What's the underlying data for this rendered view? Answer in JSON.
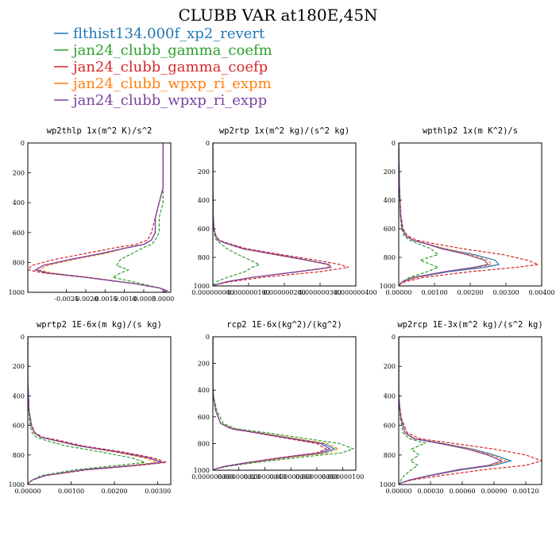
{
  "figure_title": "CLUBB VAR at180E,45N",
  "legend": [
    {
      "label": "flthist134.000f_xp2_revert",
      "color": "#1f77b4"
    },
    {
      "label": "jan24_clubb_gamma_coefm",
      "color": "#2ca02c"
    },
    {
      "label": "jan24_clubb_gamma_coefp",
      "color": "#d62728"
    },
    {
      "label": "jan24_clubb_wpxp_ri_expm",
      "color": "#ff7f0e"
    },
    {
      "label": "jan24_clubb_wpxp_ri_expp",
      "color": "#7b3fa0"
    }
  ],
  "chart_data": [
    {
      "type": "line",
      "title": "wp2thlp 1x(m^2 K)/s^2",
      "xlim": [
        -0.0035,
        0.0002
      ],
      "ylim": [
        1000,
        0
      ],
      "x_ticks": [
        "-0.0025",
        "-0.0020",
        "-0.0015",
        "-0.0010",
        "-0.0005",
        "0.0000"
      ],
      "x_tick_values": [
        -0.0025,
        -0.002,
        -0.0015,
        -0.001,
        -0.0005,
        0.0
      ],
      "y_ticks": [
        "0",
        "200",
        "400",
        "600",
        "800",
        "1000"
      ],
      "y_tick_values": [
        0,
        200,
        400,
        600,
        800,
        1000
      ],
      "y": [
        0,
        300,
        400,
        500,
        600,
        650,
        680,
        700,
        740,
        780,
        820,
        850,
        870,
        900,
        940,
        970,
        990,
        1000
      ],
      "series": [
        {
          "name": "flthist134.000f_xp2_revert",
          "x": [
            0.0,
            0.0,
            -0.0001,
            -0.0002,
            -0.0002,
            -0.0003,
            -0.0005,
            -0.0009,
            -0.0016,
            -0.0024,
            -0.0031,
            -0.0033,
            -0.003,
            -0.002,
            -0.0008,
            -0.0001,
            0.0001,
            0.0
          ]
        },
        {
          "name": "jan24_clubb_gamma_coefm",
          "x": [
            0.0,
            0.0,
            0.0,
            -0.0001,
            -0.0001,
            -0.0002,
            -0.0003,
            -0.0005,
            -0.0008,
            -0.0011,
            -0.0012,
            -0.0009,
            -0.0011,
            -0.0013,
            -0.0006,
            -0.0001,
            0.0001,
            0.0
          ]
        },
        {
          "name": "jan24_clubb_gamma_coefp",
          "x": [
            0.0,
            0.0,
            -0.0001,
            -0.0002,
            -0.0003,
            -0.0004,
            -0.0007,
            -0.0012,
            -0.002,
            -0.0028,
            -0.0034,
            -0.0035,
            -0.0031,
            -0.002,
            -0.0008,
            -0.0001,
            0.0001,
            0.0
          ]
        },
        {
          "name": "jan24_clubb_wpxp_ri_expm",
          "x": [
            0.0,
            0.0,
            -0.0001,
            -0.0002,
            -0.0002,
            -0.0003,
            -0.0005,
            -0.0009,
            -0.0015,
            -0.0023,
            -0.003,
            -0.0032,
            -0.0029,
            -0.0019,
            -0.0008,
            -0.0001,
            0.0001,
            0.0
          ]
        },
        {
          "name": "jan24_clubb_wpxp_ri_expp",
          "x": [
            0.0,
            0.0,
            -0.0001,
            -0.0002,
            -0.0002,
            -0.0003,
            -0.0005,
            -0.0009,
            -0.0016,
            -0.0024,
            -0.0031,
            -0.0033,
            -0.003,
            -0.002,
            -0.0008,
            -0.0001,
            0.0001,
            0.0
          ]
        }
      ]
    },
    {
      "type": "line",
      "title": "wp2rtp 1x(m^2 kg)/(s^2 kg)",
      "xlim": [
        0,
        4e-07
      ],
      "ylim": [
        1000,
        0
      ],
      "x_ticks": [
        "0.000000000",
        "0.000000100",
        "0.000000200",
        "0.000000300",
        "0.000000400"
      ],
      "x_tick_values": [
        0,
        1e-07,
        2e-07,
        3e-07,
        4e-07
      ],
      "y_ticks": [
        "0",
        "200",
        "400",
        "600",
        "800",
        "1000"
      ],
      "y_tick_values": [
        0,
        200,
        400,
        600,
        800,
        1000
      ],
      "y": [
        0,
        300,
        500,
        600,
        650,
        680,
        700,
        740,
        780,
        820,
        850,
        870,
        900,
        940,
        970,
        990,
        1000
      ],
      "series": [
        {
          "name": "flthist134.000f_xp2_revert",
          "x": [
            0,
            0,
            1e-09,
            3e-09,
            8e-09,
            1.5e-08,
            3.5e-08,
            8.5e-08,
            1.75e-07,
            2.65e-07,
            3.25e-07,
            3.3e-07,
            2.4e-07,
            1.1e-07,
            4e-08,
            1e-08,
            0
          ]
        },
        {
          "name": "jan24_clubb_gamma_coefm",
          "x": [
            0,
            0,
            1e-09,
            2e-09,
            5e-09,
            1e-08,
            2e-08,
            4e-08,
            7e-08,
            1.05e-07,
            1.3e-07,
            1.1e-07,
            9e-08,
            4e-08,
            1e-08,
            3e-09,
            0
          ]
        },
        {
          "name": "jan24_clubb_gamma_coefp",
          "x": [
            0,
            0,
            1e-09,
            3e-09,
            9e-09,
            1.8e-08,
            4e-08,
            9.5e-08,
            1.9e-07,
            2.9e-07,
            3.55e-07,
            3.8e-07,
            3e-07,
            1.4e-07,
            5e-08,
            1e-08,
            0
          ]
        },
        {
          "name": "jan24_clubb_wpxp_ri_expm",
          "x": [
            0,
            0,
            1e-09,
            3e-09,
            8e-09,
            1.5e-08,
            3.4e-08,
            8.2e-08,
            1.7e-07,
            2.6e-07,
            3.2e-07,
            3.25e-07,
            2.35e-07,
            1.1e-07,
            4e-08,
            1e-08,
            0
          ]
        },
        {
          "name": "jan24_clubb_wpxp_ri_expp",
          "x": [
            0,
            0,
            1e-09,
            3e-09,
            8e-09,
            1.5e-08,
            3.5e-08,
            8.5e-08,
            1.75e-07,
            2.65e-07,
            3.25e-07,
            3.3e-07,
            2.4e-07,
            1.1e-07,
            4e-08,
            1e-08,
            0
          ]
        }
      ]
    },
    {
      "type": "line",
      "title": "wpthlp2 1x(m K^2)/s",
      "xlim": [
        0,
        0.004
      ],
      "ylim": [
        1000,
        0
      ],
      "x_ticks": [
        "0.00000",
        "0.00100",
        "0.00200",
        "0.00300",
        "0.00400"
      ],
      "x_tick_values": [
        0,
        0.001,
        0.002,
        0.003,
        0.004
      ],
      "y_ticks": [
        "0",
        "200",
        "400",
        "600",
        "800",
        "1000"
      ],
      "y_tick_values": [
        0,
        200,
        400,
        600,
        800,
        1000
      ],
      "y": [
        0,
        300,
        500,
        600,
        650,
        680,
        700,
        740,
        780,
        820,
        850,
        870,
        900,
        940,
        970,
        990,
        1000
      ],
      "series": [
        {
          "name": "flthist134.000f_xp2_revert",
          "x": [
            0,
            2e-05,
            5e-05,
            0.0001,
            0.0002,
            0.0004,
            0.0007,
            0.0013,
            0.0021,
            0.0027,
            0.0028,
            0.0024,
            0.0014,
            0.0005,
            0.0001,
            2e-05,
            0
          ]
        },
        {
          "name": "jan24_clubb_gamma_coefm",
          "x": [
            0,
            2e-05,
            4e-05,
            8e-05,
            0.00015,
            0.0003,
            0.0005,
            0.0009,
            0.0011,
            0.0006,
            0.0009,
            0.0011,
            0.0008,
            0.0003,
            0.0001,
            2e-05,
            0
          ]
        },
        {
          "name": "jan24_clubb_gamma_coefp",
          "x": [
            0,
            2e-05,
            6e-05,
            0.00012,
            0.00025,
            0.0005,
            0.0009,
            0.0018,
            0.0029,
            0.0036,
            0.0039,
            0.0033,
            0.002,
            0.0007,
            0.0002,
            3e-05,
            0
          ]
        },
        {
          "name": "jan24_clubb_wpxp_ri_expm",
          "x": [
            0,
            2e-05,
            5e-05,
            0.0001,
            0.0002,
            0.0004,
            0.0007,
            0.0013,
            0.002,
            0.0025,
            0.0026,
            0.0022,
            0.0013,
            0.0005,
            0.0001,
            2e-05,
            0
          ]
        },
        {
          "name": "jan24_clubb_wpxp_ri_expp",
          "x": [
            0,
            2e-05,
            5e-05,
            0.0001,
            0.0002,
            0.0004,
            0.0007,
            0.0012,
            0.0019,
            0.0024,
            0.0025,
            0.0021,
            0.0013,
            0.0004,
            0.0001,
            2e-05,
            0
          ]
        }
      ]
    },
    {
      "type": "line",
      "title": "wprtp2 1E-6x(m kg)/(s kg)",
      "xlim": [
        0,
        0.0033
      ],
      "ylim": [
        1000,
        0
      ],
      "x_ticks": [
        "0.00000",
        "0.00100",
        "0.00200",
        "0.00300"
      ],
      "x_tick_values": [
        0,
        0.001,
        0.002,
        0.003
      ],
      "y_ticks": [
        "0",
        "200",
        "400",
        "600",
        "800",
        "1000"
      ],
      "y_tick_values": [
        0,
        200,
        400,
        600,
        800,
        1000
      ],
      "y": [
        0,
        300,
        500,
        600,
        650,
        680,
        700,
        740,
        780,
        820,
        850,
        870,
        900,
        940,
        970,
        990,
        1000
      ],
      "series": [
        {
          "name": "flthist134.000f_xp2_revert",
          "x": [
            0,
            0,
            3e-05,
            8e-05,
            0.00015,
            0.0003,
            0.0006,
            0.0012,
            0.0021,
            0.0028,
            0.0031,
            0.0025,
            0.0013,
            0.0004,
            0.0001,
            2e-05,
            0
          ]
        },
        {
          "name": "jan24_clubb_gamma_coefm",
          "x": [
            0,
            0,
            2e-05,
            5e-05,
            0.0001,
            0.0002,
            0.0004,
            0.0009,
            0.0017,
            0.0024,
            0.0027,
            0.0021,
            0.0011,
            0.0003,
            0.0001,
            1e-05,
            0
          ]
        },
        {
          "name": "jan24_clubb_gamma_coefp",
          "x": [
            0,
            0,
            3e-05,
            9e-05,
            0.00017,
            0.00035,
            0.0007,
            0.0013,
            0.0022,
            0.0029,
            0.0032,
            0.0026,
            0.0014,
            0.0004,
            0.0001,
            2e-05,
            0
          ]
        },
        {
          "name": "jan24_clubb_wpxp_ri_expm",
          "x": [
            0,
            0,
            3e-05,
            8e-05,
            0.00015,
            0.0003,
            0.0006,
            0.0012,
            0.002,
            0.0027,
            0.003,
            0.0024,
            0.0013,
            0.0004,
            0.0001,
            2e-05,
            0
          ]
        },
        {
          "name": "jan24_clubb_wpxp_ri_expp",
          "x": [
            0,
            0,
            3e-05,
            8e-05,
            0.00015,
            0.0003,
            0.0006,
            0.0012,
            0.0021,
            0.0028,
            0.0031,
            0.0025,
            0.0013,
            0.0004,
            0.0001,
            2e-05,
            0
          ]
        }
      ]
    },
    {
      "type": "line",
      "title": "rcp2 1E-6x(kg^2)/(kg^2)",
      "xlim": [
        0,
        1.1e-07
      ],
      "ylim": [
        1000,
        0
      ],
      "x_ticks": [
        "0.000000000",
        "0.000000020",
        "0.000000040",
        "0.000000060",
        "0.000000080",
        "0.000000100"
      ],
      "x_tick_values": [
        0,
        2e-08,
        4e-08,
        6e-08,
        8e-08,
        1e-07
      ],
      "y_ticks": [
        "0",
        "200",
        "400",
        "600",
        "800",
        "1000"
      ],
      "y_tick_values": [
        0,
        200,
        400,
        600,
        800,
        1000
      ],
      "y": [
        0,
        380,
        450,
        550,
        650,
        690,
        720,
        760,
        800,
        840,
        870,
        900,
        940,
        970,
        990,
        1000
      ],
      "series": [
        {
          "name": "flthist134.000f_xp2_revert",
          "x": [
            0,
            0,
            5e-10,
            2e-09,
            6e-09,
            1.5e-08,
            3.5e-08,
            6e-08,
            8.5e-08,
            9.35e-08,
            8.5e-08,
            6e-08,
            3e-08,
            1e-08,
            2e-09,
            0
          ]
        },
        {
          "name": "jan24_clubb_gamma_coefm",
          "x": [
            0,
            0,
            6e-10,
            3e-09,
            8e-09,
            1.8e-08,
            4.2e-08,
            7e-08,
            9.75e-08,
            1.08e-07,
            9.9e-08,
            7e-08,
            3.5e-08,
            1.2e-08,
            2e-09,
            0
          ]
        },
        {
          "name": "jan24_clubb_gamma_coefp",
          "x": [
            0,
            0,
            5e-10,
            2e-09,
            6e-09,
            1.4e-08,
            3.3e-08,
            5.6e-08,
            8e-08,
            8.7e-08,
            8e-08,
            5.6e-08,
            2.8e-08,
            9e-09,
            2e-09,
            0
          ]
        },
        {
          "name": "jan24_clubb_wpxp_ri_expm",
          "x": [
            0,
            0,
            5e-10,
            2e-09,
            6e-09,
            1.6e-08,
            3.6e-08,
            6.2e-08,
            8.8e-08,
            9.65e-08,
            8.8e-08,
            6.2e-08,
            3.1e-08,
            1e-08,
            2e-09,
            0
          ]
        },
        {
          "name": "jan24_clubb_wpxp_ri_expp",
          "x": [
            0,
            0,
            5e-10,
            2e-09,
            6e-09,
            1.5e-08,
            3.4e-08,
            5.8e-08,
            8.3e-08,
            9e-08,
            8.2e-08,
            5.8e-08,
            2.9e-08,
            1e-08,
            2e-09,
            0
          ]
        }
      ]
    },
    {
      "type": "line",
      "title": "wp2rcp 1E-3x(m^2 kg)/(s^2 kg)",
      "xlim": [
        0,
        0.00135
      ],
      "ylim": [
        1000,
        0
      ],
      "x_ticks": [
        "0.00000",
        "0.00030",
        "0.00060",
        "0.00090",
        "0.00120"
      ],
      "x_tick_values": [
        0,
        0.0003,
        0.0006,
        0.0009,
        0.0012
      ],
      "y_ticks": [
        "0",
        "200",
        "400",
        "600",
        "800",
        "1000"
      ],
      "y_tick_values": [
        0,
        200,
        400,
        600,
        800,
        1000
      ],
      "y": [
        0,
        380,
        450,
        550,
        650,
        690,
        720,
        760,
        800,
        840,
        870,
        900,
        940,
        970,
        990,
        1000
      ],
      "series": [
        {
          "name": "flthist134.000f_xp2_revert",
          "x": [
            0,
            0,
            5e-06,
            2e-05,
            6e-05,
            0.00015,
            0.0004,
            0.0007,
            0.0009,
            0.00106,
            0.0009,
            0.0006,
            0.0003,
            0.0001,
            2e-05,
            0
          ]
        },
        {
          "name": "jan24_clubb_gamma_coefm",
          "x": [
            0,
            0,
            4e-06,
            1.5e-05,
            4e-05,
            0.0001,
            0.00025,
            0.00012,
            0.00019,
            0.00011,
            0.00018,
            0.00012,
            5e-05,
            2e-05,
            5e-06,
            0
          ]
        },
        {
          "name": "jan24_clubb_gamma_coefp",
          "x": [
            0,
            0,
            6e-06,
            2.5e-05,
            8e-05,
            0.0002,
            0.0005,
            0.0009,
            0.0012,
            0.00135,
            0.0012,
            0.0008,
            0.0004,
            0.00012,
            2e-05,
            0
          ]
        },
        {
          "name": "jan24_clubb_wpxp_ri_expm",
          "x": [
            0,
            0,
            5e-06,
            2e-05,
            6e-05,
            0.00015,
            0.00039,
            0.00068,
            0.00087,
            0.00101,
            0.00088,
            0.00058,
            0.00029,
            0.0001,
            2e-05,
            0
          ]
        },
        {
          "name": "jan24_clubb_wpxp_ri_expp",
          "x": [
            0,
            0,
            5e-06,
            2e-05,
            6e-05,
            0.00014,
            0.00037,
            0.00065,
            0.00084,
            0.00097,
            0.00085,
            0.00056,
            0.00028,
            0.0001,
            2e-05,
            0
          ]
        }
      ]
    }
  ]
}
